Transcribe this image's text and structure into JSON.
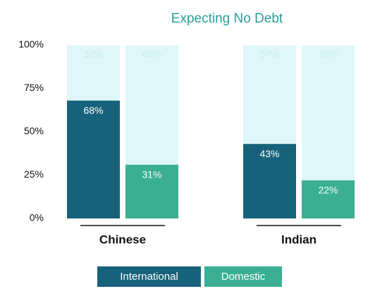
{
  "chart_data": {
    "type": "bar",
    "title": "Expecting No Debt",
    "categories": [
      "Chinese",
      "Indian"
    ],
    "series": [
      {
        "name": "International",
        "color": "#17627a",
        "values": [
          68,
          43
        ],
        "value_labels": [
          "68%",
          "43%"
        ],
        "complement": [
          32,
          57
        ],
        "complement_labels": [
          "32%",
          "57%"
        ]
      },
      {
        "name": "Domestic",
        "color": "#3aaf94",
        "values": [
          31,
          22
        ],
        "value_labels": [
          "31%",
          "22%"
        ],
        "complement": [
          69,
          78
        ],
        "complement_labels": [
          "69%",
          "78%"
        ]
      }
    ],
    "complement_color": "#dff7f9",
    "ylim": [
      0,
      100
    ],
    "yticks": [
      {
        "value": 0,
        "label": "0%"
      },
      {
        "value": 25,
        "label": "25%"
      },
      {
        "value": 50,
        "label": "50%"
      },
      {
        "value": 75,
        "label": "75%"
      },
      {
        "value": 100,
        "label": "100%"
      }
    ],
    "grid": false
  }
}
